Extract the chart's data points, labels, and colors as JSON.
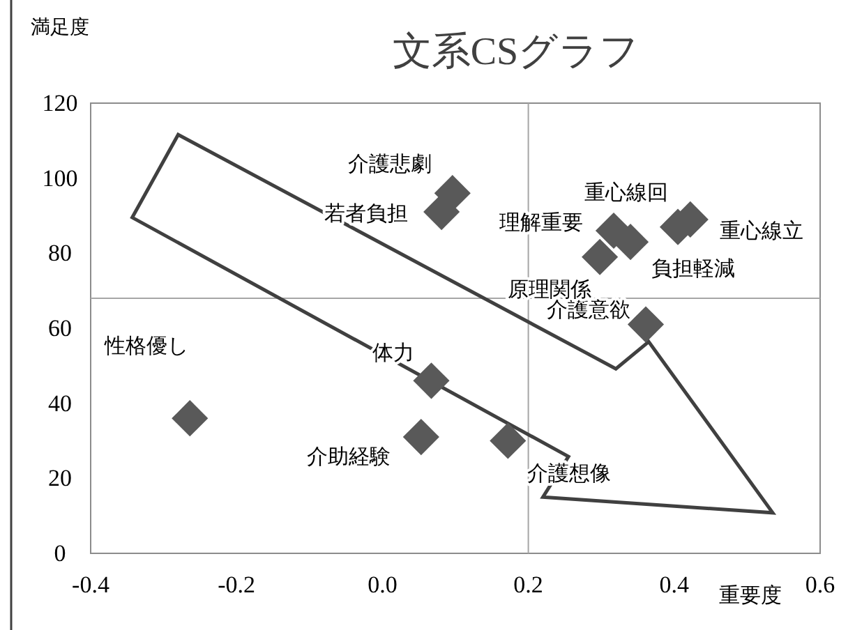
{
  "chart_data": {
    "type": "scatter",
    "title": "文系CSグラフ",
    "xlabel": "重要度",
    "ylabel": "満足度",
    "marker": "diamond",
    "xlim": [
      -0.4,
      0.6
    ],
    "xticks": [
      -0.4,
      -0.2,
      {
        "value": 0,
        "label": "0.0"
      },
      0.2,
      0.4,
      0.6
    ],
    "ylim": [
      0,
      120
    ],
    "yticks": [
      0,
      20,
      40,
      60,
      80,
      100,
      120
    ],
    "ref_lines": [
      {
        "axis": "x",
        "value": 0.2,
        "color": "#a6a6a6"
      },
      {
        "axis": "y",
        "value": 68,
        "color": "#a6a6a6"
      }
    ],
    "series": [
      {
        "name": "性格優し",
        "color": "#595959",
        "x": [
          -0.264
        ],
        "values": [
          36
        ]
      },
      {
        "name": "体力",
        "color": "#595959",
        "x": [
          0.067
        ],
        "values": [
          46
        ]
      },
      {
        "name": "介助経験",
        "color": "#595959",
        "x": [
          0.053
        ],
        "values": [
          31
        ]
      },
      {
        "name": "介護想像",
        "color": "#595959",
        "x": [
          0.172
        ],
        "values": [
          30
        ]
      },
      {
        "name": "介護意欲",
        "color": "#595959",
        "x": [
          0.361
        ],
        "values": [
          61
        ]
      },
      {
        "name": "原理関係",
        "color": "#595959",
        "x": [
          0.298
        ],
        "values": [
          79
        ]
      },
      {
        "name": "理解重要",
        "color": "#595959",
        "x": [
          0.317
        ],
        "values": [
          86
        ]
      },
      {
        "name": "負担軽減",
        "color": "#595959",
        "x": [
          0.34
        ],
        "values": [
          83
        ]
      },
      {
        "name": "重心線回",
        "color": "#595959",
        "x": [
          0.405
        ],
        "values": [
          87
        ]
      },
      {
        "name": "重心線立",
        "color": "#595959",
        "x": [
          0.422
        ],
        "values": [
          89
        ]
      },
      {
        "name": "若者負担",
        "color": "#595959",
        "x": [
          0.081
        ],
        "values": [
          91
        ]
      },
      {
        "name": "介護悲劇",
        "color": "#595959",
        "x": [
          0.096
        ],
        "values": [
          96
        ]
      }
    ]
  }
}
